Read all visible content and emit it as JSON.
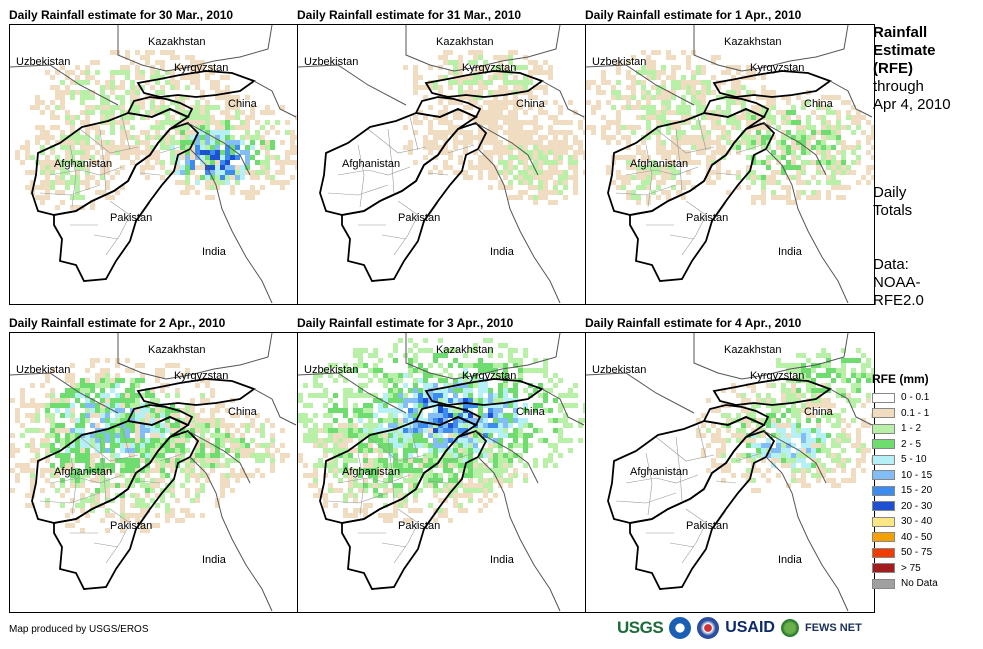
{
  "panels": [
    {
      "title": "Daily Rainfall estimate for 30 Mar., 2010",
      "rain_level": "heavy-east"
    },
    {
      "title": "Daily Rainfall estimate for 31 Mar., 2010",
      "rain_level": "light"
    },
    {
      "title": "Daily Rainfall estimate for 1 Apr., 2010",
      "rain_level": "moderate-east"
    },
    {
      "title": "Daily Rainfall estimate for 2 Apr., 2010",
      "rain_level": "moderate-widespread"
    },
    {
      "title": "Daily Rainfall estimate for 3 Apr., 2010",
      "rain_level": "heavy-north"
    },
    {
      "title": "Daily Rainfall estimate for 4 Apr., 2010",
      "rain_level": "moderate-northeast"
    }
  ],
  "map_labels": {
    "kazakhstan": "Kazakhstan",
    "uzbekistan": "Uzbekistan",
    "kyrgyzstan": "Kyrgyzstan",
    "china": "China",
    "afghanistan": "Afghanistan",
    "pakistan": "Pakistan",
    "india": "India"
  },
  "side_info": {
    "title_line1": "Rainfall",
    "title_line2": "Estimate",
    "title_line3": "(RFE)",
    "through": "through",
    "date": "Apr 4, 2010",
    "totals_line1": "Daily",
    "totals_line2": "Totals",
    "data_line1": "Data:",
    "data_line2": "NOAA-",
    "data_line3": "RFE2.0"
  },
  "legend": {
    "title": "RFE (mm)",
    "items": [
      {
        "label": "0 - 0.1",
        "color": "#ffffff"
      },
      {
        "label": "0.1 - 1",
        "color": "#f0dcc0"
      },
      {
        "label": "1 - 2",
        "color": "#b9f0a8"
      },
      {
        "label": "2 - 5",
        "color": "#6edc6e"
      },
      {
        "label": "5 - 10",
        "color": "#b4f0f5"
      },
      {
        "label": "10 - 15",
        "color": "#82bef5"
      },
      {
        "label": "15 - 20",
        "color": "#3c8cf0"
      },
      {
        "label": "20 - 30",
        "color": "#1e50d2"
      },
      {
        "label": "30 - 40",
        "color": "#fae682"
      },
      {
        "label": "40 - 50",
        "color": "#f5a000"
      },
      {
        "label": "50 - 75",
        "color": "#f03c00"
      },
      {
        "label": "> 75",
        "color": "#a01e1e"
      },
      {
        "label": "No Data",
        "color": "#a0a0a0"
      }
    ]
  },
  "credit": "Map produced by USGS/EROS",
  "logos": {
    "usgs": "USGS",
    "usaid": "USAID",
    "fews": "FEWS NET"
  }
}
